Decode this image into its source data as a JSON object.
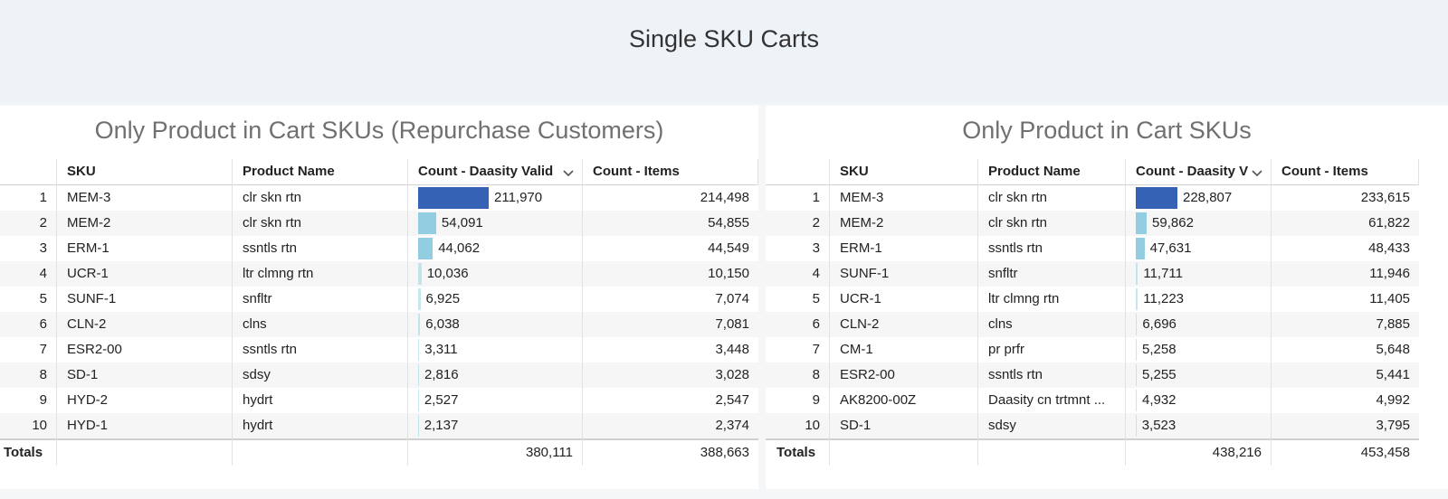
{
  "header": {
    "title": "Single SKU Carts"
  },
  "panels": [
    {
      "title": "Only Product in Cart SKUs (Repurchase Customers)",
      "columns": [
        "SKU",
        "Product Name",
        "Count - Daasity Valid",
        "Count - Items"
      ],
      "rows": [
        [
          1,
          "MEM-3",
          "clr skn rtn",
          {
            "value": 211970,
            "label": "211,970"
          },
          "214,498"
        ],
        [
          2,
          "MEM-2",
          "clr skn rtn",
          {
            "value": 54091,
            "label": "54,091"
          },
          "54,855"
        ],
        [
          3,
          "ERM-1",
          "ssntls rtn",
          {
            "value": 44062,
            "label": "44,062"
          },
          "44,549"
        ],
        [
          4,
          "UCR-1",
          "ltr clmng rtn",
          {
            "value": 10036,
            "label": "10,036"
          },
          "10,150"
        ],
        [
          5,
          "SUNF-1",
          "snfltr",
          {
            "value": 6925,
            "label": "6,925"
          },
          "7,074"
        ],
        [
          6,
          "CLN-2",
          "clns",
          {
            "value": 6038,
            "label": "6,038"
          },
          "7,081"
        ],
        [
          7,
          "ESR2-00",
          "ssntls rtn",
          {
            "value": 3311,
            "label": "3,311"
          },
          "3,448"
        ],
        [
          8,
          "SD-1",
          "sdsy",
          {
            "value": 2816,
            "label": "2,816"
          },
          "3,028"
        ],
        [
          9,
          "HYD-2",
          "hydrt",
          {
            "value": 2527,
            "label": "2,527"
          },
          "2,547"
        ],
        [
          10,
          "HYD-1",
          "hydrt",
          {
            "value": 2137,
            "label": "2,137"
          },
          "2,374"
        ]
      ],
      "totals": {
        "label": "Totals",
        "count": "380,111",
        "items": "388,663"
      }
    },
    {
      "title": "Only Product in Cart SKUs",
      "columns": [
        "SKU",
        "Product Name",
        "Count - Daasity V",
        "Count - Items"
      ],
      "rows": [
        [
          1,
          "MEM-3",
          "clr skn rtn",
          {
            "value": 228807,
            "label": "228,807"
          },
          "233,615"
        ],
        [
          2,
          "MEM-2",
          "clr skn rtn",
          {
            "value": 59862,
            "label": "59,862"
          },
          "61,822"
        ],
        [
          3,
          "ERM-1",
          "ssntls rtn",
          {
            "value": 47631,
            "label": "47,631"
          },
          "48,433"
        ],
        [
          4,
          "SUNF-1",
          "snfltr",
          {
            "value": 11711,
            "label": "11,711"
          },
          "11,946"
        ],
        [
          5,
          "UCR-1",
          "ltr clmng rtn",
          {
            "value": 11223,
            "label": "11,223"
          },
          "11,405"
        ],
        [
          6,
          "CLN-2",
          "clns",
          {
            "value": 6696,
            "label": "6,696"
          },
          "7,885"
        ],
        [
          7,
          "CM-1",
          "pr prfr",
          {
            "value": 5258,
            "label": "5,258"
          },
          "5,648"
        ],
        [
          8,
          "ESR2-00",
          "ssntls rtn",
          {
            "value": 5255,
            "label": "5,255"
          },
          "5,441"
        ],
        [
          9,
          "AK8200-00Z",
          "Daasity cn trtmnt ...",
          {
            "value": 4932,
            "label": "4,932"
          },
          "4,992"
        ],
        [
          10,
          "SD-1",
          "sdsy",
          {
            "value": 3523,
            "label": "3,523"
          },
          "3,795"
        ]
      ],
      "totals": {
        "label": "Totals",
        "count": "438,216",
        "items": "453,458"
      }
    }
  ]
}
